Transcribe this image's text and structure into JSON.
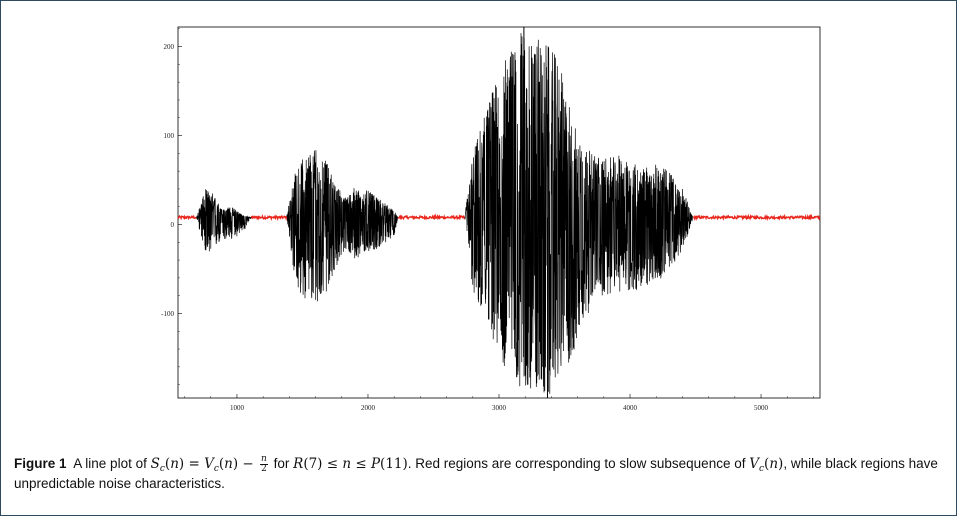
{
  "chart_data": {
    "type": "line",
    "title": "",
    "xlabel": "",
    "ylabel": "",
    "xlim": [
      550,
      5450
    ],
    "ylim": [
      -195,
      222
    ],
    "x_ticks": [
      1000,
      2000,
      3000,
      4000,
      5000
    ],
    "y_ticks": [
      -100,
      0,
      100,
      200
    ],
    "x_tick_labels": [
      "1000",
      "2000",
      "3000",
      "4000",
      "5000"
    ],
    "y_tick_labels": [
      "-100",
      "0",
      "100",
      "200"
    ],
    "baseline": 8,
    "grid": false,
    "legend": "none",
    "series": [
      {
        "color": "#e8261c",
        "regions": [
          [
            550,
            690
          ],
          [
            1110,
            1380
          ],
          [
            2230,
            2740
          ],
          [
            4480,
            5450
          ]
        ],
        "amplitude": 1.5
      },
      {
        "color": "#000000",
        "regions": [
          [
            690,
            1110
          ],
          [
            1380,
            2230
          ],
          [
            2740,
            4480
          ]
        ],
        "envelope": [
          [
            690,
            8,
            8
          ],
          [
            760,
            40,
            -35
          ],
          [
            820,
            35,
            -30
          ],
          [
            880,
            18,
            -18
          ],
          [
            960,
            20,
            -18
          ],
          [
            1050,
            10,
            -8
          ],
          [
            1110,
            8,
            8
          ],
          [
            1380,
            10,
            4
          ],
          [
            1450,
            65,
            -70
          ],
          [
            1540,
            80,
            -90
          ],
          [
            1600,
            90,
            -95
          ],
          [
            1670,
            75,
            -80
          ],
          [
            1740,
            50,
            -55
          ],
          [
            1820,
            30,
            -30
          ],
          [
            1900,
            42,
            -40
          ],
          [
            2000,
            38,
            -32
          ],
          [
            2100,
            28,
            -25
          ],
          [
            2200,
            15,
            -12
          ],
          [
            2230,
            8,
            8
          ],
          [
            2740,
            12,
            4
          ],
          [
            2800,
            80,
            -80
          ],
          [
            2900,
            130,
            -110
          ],
          [
            3000,
            170,
            -150
          ],
          [
            3100,
            200,
            -175
          ],
          [
            3180,
            220,
            -185
          ],
          [
            3250,
            205,
            -190
          ],
          [
            3320,
            210,
            -195
          ],
          [
            3400,
            200,
            -190
          ],
          [
            3480,
            170,
            -170
          ],
          [
            3560,
            120,
            -150
          ],
          [
            3640,
            90,
            -110
          ],
          [
            3720,
            80,
            -90
          ],
          [
            3800,
            75,
            -80
          ],
          [
            3900,
            80,
            -75
          ],
          [
            4000,
            70,
            -80
          ],
          [
            4100,
            65,
            -70
          ],
          [
            4200,
            70,
            -65
          ],
          [
            4300,
            60,
            -50
          ],
          [
            4400,
            40,
            -30
          ],
          [
            4480,
            10,
            6
          ]
        ],
        "spikes": [
          {
            "x": 3190,
            "y": 222
          },
          {
            "x": 3220,
            "y": -180
          },
          {
            "x": 3370,
            "y": -195
          },
          {
            "x": 3330,
            "y": -160
          }
        ]
      }
    ]
  },
  "caption": {
    "lead": "Figure 1",
    "t1": "A line plot of",
    "s_var": "S",
    "c_sub": "c",
    "n_var": "n",
    "eq": " = ",
    "v_var": "V",
    "minus": " − ",
    "frac_num": "n",
    "frac_den": "2",
    "t2": "for",
    "r_var": "R",
    "r_arg": "(7)",
    "le": "≤",
    "p_var": "P",
    "p_arg": "(11)",
    "t3": ". Red regions are corresponding to slow subsequence of",
    "t4": ", while black regions have unpredictable noise characteristics."
  }
}
